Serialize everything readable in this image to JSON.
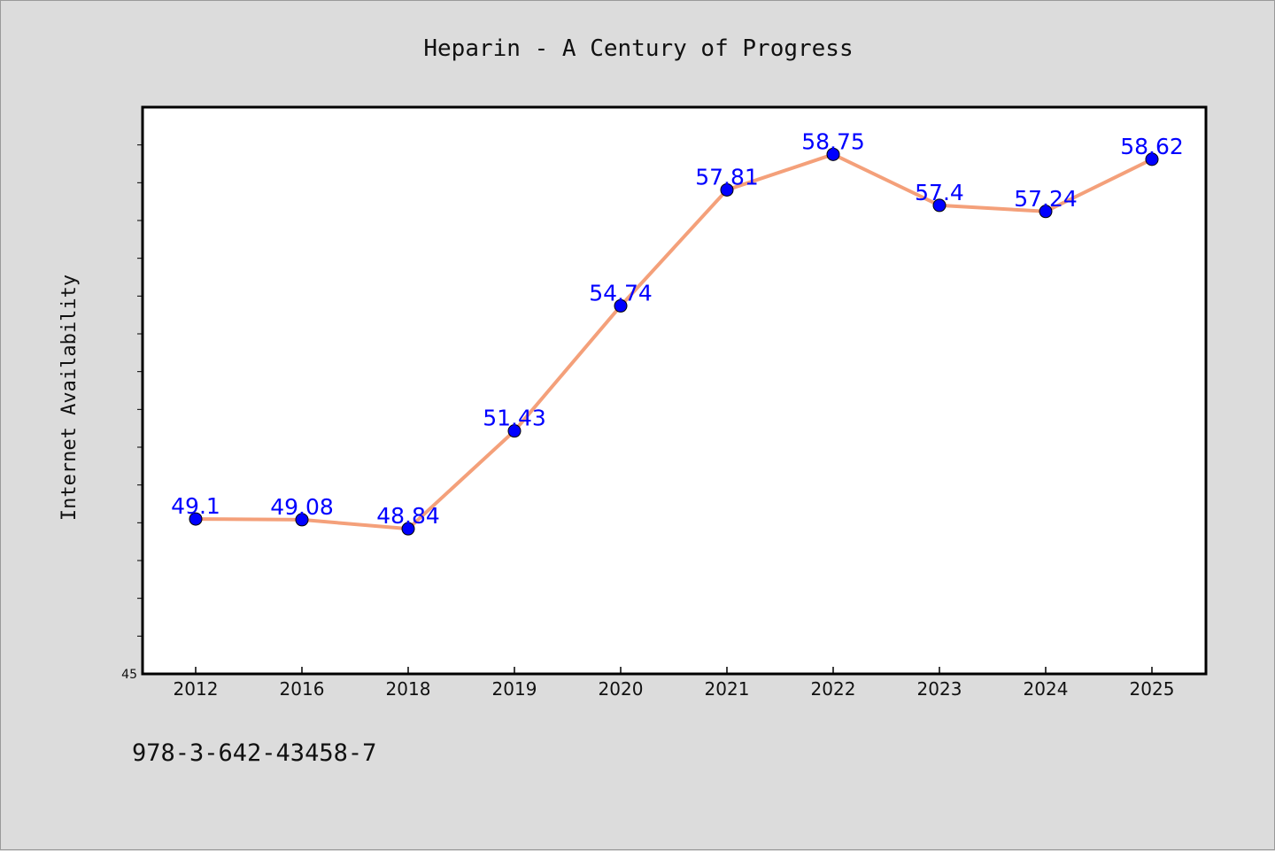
{
  "colors": {
    "background": "#dcdcdc",
    "plot_background": "#ffffff",
    "line": "#f4a07a",
    "marker": "#0000ff",
    "data_label": "#0000ff",
    "text": "#111111"
  },
  "footer": {
    "code": "978-3-642-43458-7"
  },
  "chart_data": {
    "type": "line",
    "title": "Heparin - A Century of Progress",
    "xlabel": "",
    "ylabel": "Internet Availability",
    "categories": [
      "2012",
      "2016",
      "2018",
      "2019",
      "2020",
      "2021",
      "2022",
      "2023",
      "2024",
      "2025"
    ],
    "series": [
      {
        "values": [
          49.1,
          49.08,
          48.84,
          51.43,
          54.74,
          57.81,
          58.75,
          57.4,
          57.24,
          58.62
        ],
        "labels": [
          "49.1",
          "49.08",
          "48.84",
          "51.43",
          "54.74",
          "57.81",
          "58.75",
          "57.4",
          "57.24",
          "58.62"
        ]
      }
    ],
    "ylim": [
      45,
      60
    ],
    "ytick_labels": [
      "45"
    ],
    "minor_ytick_step": 1,
    "grid": false,
    "legend": "none"
  }
}
